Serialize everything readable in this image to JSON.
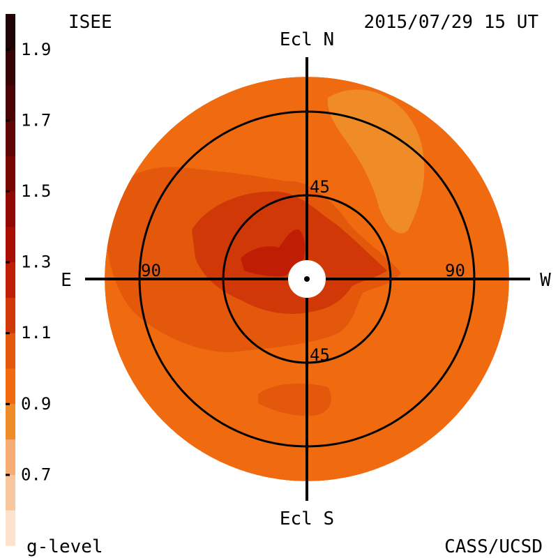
{
  "header": {
    "org": "ISEE",
    "timestamp": "2015/07/29 15 UT"
  },
  "footer": {
    "quantity_label": "g-level",
    "credit": "CASS/UCSD"
  },
  "directions": {
    "north": "Ecl N",
    "south": "Ecl S",
    "east": "E",
    "west": "W"
  },
  "ring_labels": {
    "inner_north": "45",
    "inner_south": "45",
    "outer_east": "90",
    "outer_west": "90"
  },
  "chart_data": {
    "type": "heatmap",
    "projection": "polar sky map (elongation from Sun)",
    "colorbar": {
      "label": "g-level",
      "range": [
        0.5,
        2.0
      ],
      "ticks": [
        "1.9",
        "1.7",
        "1.5",
        "1.3",
        "1.1",
        "0.9",
        "0.7"
      ],
      "bins": [
        {
          "from": 0.5,
          "to": 0.6,
          "color": "#fde3cc"
        },
        {
          "from": 0.6,
          "to": 0.7,
          "color": "#f9c79d"
        },
        {
          "from": 0.7,
          "to": 0.8,
          "color": "#f6ac72"
        },
        {
          "from": 0.8,
          "to": 0.9,
          "color": "#f08c28"
        },
        {
          "from": 0.9,
          "to": 1.0,
          "color": "#f06b10"
        },
        {
          "from": 1.0,
          "to": 1.1,
          "color": "#e4580c"
        },
        {
          "from": 1.1,
          "to": 1.2,
          "color": "#d03808"
        },
        {
          "from": 1.2,
          "to": 1.3,
          "color": "#c01e04"
        },
        {
          "from": 1.3,
          "to": 1.4,
          "color": "#a80e02"
        },
        {
          "from": 1.4,
          "to": 1.5,
          "color": "#900804"
        },
        {
          "from": 1.5,
          "to": 1.6,
          "color": "#780404"
        },
        {
          "from": 1.6,
          "to": 1.7,
          "color": "#600404"
        },
        {
          "from": 1.7,
          "to": 1.8,
          "color": "#4a0404"
        },
        {
          "from": 1.8,
          "to": 1.9,
          "color": "#360404"
        },
        {
          "from": 1.9,
          "to": 2.0,
          "color": "#1e0404"
        }
      ]
    },
    "elongation_circles_deg": [
      45,
      90
    ],
    "background_level": 0.95,
    "regions": [
      {
        "level": 0.85,
        "description": "upper-right lobe"
      },
      {
        "level": 1.05,
        "description": "left and center broad enhancement"
      },
      {
        "level": 1.05,
        "description": "south patch"
      },
      {
        "level": 1.15,
        "description": "central ring around Sun"
      },
      {
        "level": 1.25,
        "description": "inner core near Sun"
      }
    ]
  }
}
